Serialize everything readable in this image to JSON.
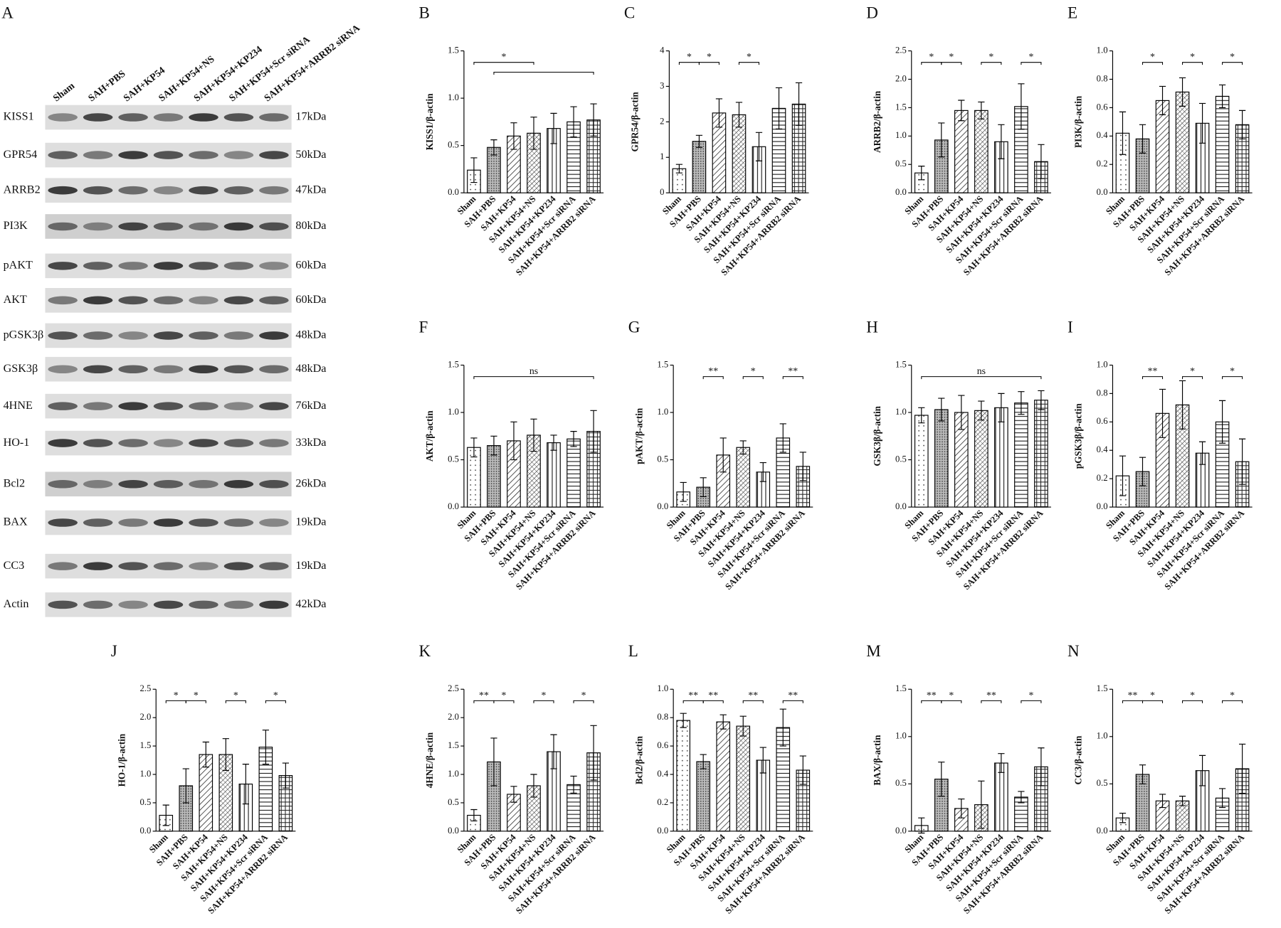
{
  "blot": {
    "panel": "A",
    "lanes": [
      "Sham",
      "SAH+PBS",
      "SAH+KP54",
      "SAH+KP54+NS",
      "SAH+KP54+KP234",
      "SAH+KP54+Scr siRNA",
      "SAH+KP54+ARRB2 siRNA"
    ],
    "rows": [
      {
        "protein": "KISS1",
        "size": "17kDa"
      },
      {
        "protein": "GPR54",
        "size": "50kDa"
      },
      {
        "protein": "ARRB2",
        "size": "47kDa"
      },
      {
        "protein": "PI3K",
        "size": "80kDa"
      },
      {
        "protein": "pAKT",
        "size": "60kDa"
      },
      {
        "protein": "AKT",
        "size": "60kDa"
      },
      {
        "protein": "pGSK3β",
        "size": "48kDa"
      },
      {
        "protein": "GSK3β",
        "size": "48kDa"
      },
      {
        "protein": "4HNE",
        "size": "76kDa"
      },
      {
        "protein": "HO-1",
        "size": "33kDa"
      },
      {
        "protein": "Bcl2",
        "size": "26kDa"
      },
      {
        "protein": "BAX",
        "size": "19kDa"
      },
      {
        "protein": "CC3",
        "size": "19kDa"
      },
      {
        "protein": "Actin",
        "size": "42kDa"
      }
    ]
  },
  "chart_data": [
    {
      "type": "bar",
      "panel": "B",
      "ylabel": "KISS1/β-actin",
      "categories": [
        "Sham",
        "SAH+PBS",
        "SAH+KP54",
        "SAH+KP54+NS",
        "SAH+KP54+KP234",
        "SAH+KP54+Scr siRNA",
        "SAH+KP54+ARRB2 siRNA"
      ],
      "values": [
        0.24,
        0.48,
        0.6,
        0.63,
        0.68,
        0.75,
        0.77
      ],
      "errors": [
        0.13,
        0.08,
        0.14,
        0.17,
        0.16,
        0.16,
        0.17
      ],
      "ylim": [
        0,
        1.5
      ],
      "yticks": [
        {
          "value": 0,
          "label": "0.0"
        },
        0.5,
        {
          "value": 1,
          "label": "1.0"
        },
        1.5
      ],
      "annotations": [
        {
          "label": "*",
          "between": [
            "Sham",
            "SAH+KP54+NS"
          ]
        },
        {
          "between": [
            "SAH+PBS",
            "SAH+KP54+ARRB2 siRNA"
          ]
        }
      ]
    },
    {
      "type": "bar",
      "panel": "C",
      "ylabel": "GPR54/β-actin",
      "categories": [
        "Sham",
        "SAH+PBS",
        "SAH+KP54",
        "SAH+KP54+NS",
        "SAH+KP54+KP234",
        "SAH+KP54+Scr siRNA",
        "SAH+KP54+ARRB2 siRNA"
      ],
      "values": [
        0.68,
        1.45,
        2.25,
        2.2,
        1.3,
        2.38,
        2.5
      ],
      "errors": [
        0.12,
        0.17,
        0.4,
        0.35,
        0.4,
        0.58,
        0.6
      ],
      "ylim": [
        0,
        4
      ],
      "yticks": [
        0,
        1,
        2,
        3,
        4
      ],
      "annotations": [
        {
          "label": "*",
          "between": [
            "Sham",
            "SAH+PBS"
          ]
        },
        {
          "label": "*",
          "between": [
            "SAH+PBS",
            "SAH+KP54"
          ]
        },
        {
          "label": "*",
          "between": [
            "SAH+KP54+NS",
            "SAH+KP54+KP234"
          ]
        }
      ]
    },
    {
      "type": "bar",
      "panel": "D",
      "ylabel": "ARRB2/β-actin",
      "categories": [
        "Sham",
        "SAH+PBS",
        "SAH+KP54",
        "SAH+KP54+NS",
        "SAH+KP54+KP234",
        "SAH+KP54+Scr siRNA",
        "SAH+KP54+ARRB2 siRNA"
      ],
      "values": [
        0.35,
        0.93,
        1.45,
        1.45,
        0.9,
        1.52,
        0.55
      ],
      "errors": [
        0.12,
        0.3,
        0.18,
        0.15,
        0.3,
        0.4,
        0.3
      ],
      "ylim": [
        0,
        2.5
      ],
      "yticks": [
        {
          "value": 0,
          "label": "0.0"
        },
        0.5,
        {
          "value": 1,
          "label": "1.0"
        },
        1.5,
        {
          "value": 2,
          "label": "2.0"
        },
        2.5
      ],
      "annotations": [
        {
          "label": "*",
          "between": [
            "Sham",
            "SAH+PBS"
          ]
        },
        {
          "label": "*",
          "between": [
            "SAH+PBS",
            "SAH+KP54"
          ]
        },
        {
          "label": "*",
          "between": [
            "SAH+KP54+NS",
            "SAH+KP54+KP234"
          ]
        },
        {
          "label": "*",
          "between": [
            "SAH+KP54+Scr siRNA",
            "SAH+KP54+ARRB2 siRNA"
          ]
        }
      ]
    },
    {
      "type": "bar",
      "panel": "E",
      "ylabel": "PI3K/β-actin",
      "categories": [
        "Sham",
        "SAH+PBS",
        "SAH+KP54",
        "SAH+KP54+NS",
        "SAH+KP54+KP234",
        "SAH+KP54+Scr siRNA",
        "SAH+KP54+ARRB2 siRNA"
      ],
      "values": [
        0.42,
        0.38,
        0.65,
        0.71,
        0.49,
        0.68,
        0.48
      ],
      "errors": [
        0.15,
        0.1,
        0.1,
        0.1,
        0.14,
        0.08,
        0.1
      ],
      "ylim": [
        0,
        1
      ],
      "yticks": [
        {
          "value": 0,
          "label": "0.0"
        },
        0.2,
        0.4,
        0.6,
        0.8,
        {
          "value": 1,
          "label": "1.0"
        }
      ],
      "annotations": [
        {
          "label": "*",
          "between": [
            "SAH+PBS",
            "SAH+KP54"
          ]
        },
        {
          "label": "*",
          "between": [
            "SAH+KP54+NS",
            "SAH+KP54+KP234"
          ]
        },
        {
          "label": "*",
          "between": [
            "SAH+KP54+Scr siRNA",
            "SAH+KP54+ARRB2 siRNA"
          ]
        }
      ]
    },
    {
      "type": "bar",
      "panel": "F",
      "ylabel": "AKT/β-actin",
      "categories": [
        "Sham",
        "SAH+PBS",
        "SAH+KP54",
        "SAH+KP54+NS",
        "SAH+KP54+KP234",
        "SAH+KP54+Scr siRNA",
        "SAH+KP54+ARRB2 siRNA"
      ],
      "values": [
        0.63,
        0.65,
        0.7,
        0.76,
        0.68,
        0.72,
        0.8
      ],
      "errors": [
        0.1,
        0.1,
        0.2,
        0.17,
        0.08,
        0.08,
        0.22
      ],
      "ylim": [
        0,
        1.5
      ],
      "yticks": [
        {
          "value": 0,
          "label": "0.0"
        },
        0.5,
        {
          "value": 1,
          "label": "1.0"
        },
        1.5
      ],
      "annotations": [
        {
          "label": "ns",
          "between": [
            "Sham",
            "SAH+KP54+ARRB2 siRNA"
          ]
        }
      ]
    },
    {
      "type": "bar",
      "panel": "G",
      "ylabel": "pAKT/β-actin",
      "categories": [
        "Sham",
        "SAH+PBS",
        "SAH+KP54",
        "SAH+KP54+NS",
        "SAH+KP54+KP234",
        "SAH+KP54+Scr siRNA",
        "SAH+KP54+ARRB2 siRNA"
      ],
      "values": [
        0.16,
        0.21,
        0.55,
        0.63,
        0.37,
        0.73,
        0.43
      ],
      "errors": [
        0.1,
        0.1,
        0.18,
        0.07,
        0.1,
        0.15,
        0.15
      ],
      "ylim": [
        0,
        1.5
      ],
      "yticks": [
        {
          "value": 0,
          "label": "0.0"
        },
        0.5,
        {
          "value": 1,
          "label": "1.0"
        },
        1.5
      ],
      "annotations": [
        {
          "label": "**",
          "between": [
            "SAH+PBS",
            "SAH+KP54"
          ]
        },
        {
          "label": "*",
          "between": [
            "SAH+KP54+NS",
            "SAH+KP54+KP234"
          ]
        },
        {
          "label": "**",
          "between": [
            "SAH+KP54+Scr siRNA",
            "SAH+KP54+ARRB2 siRNA"
          ]
        }
      ]
    },
    {
      "type": "bar",
      "panel": "H",
      "ylabel": "GSK3β/β-actin",
      "categories": [
        "Sham",
        "SAH+PBS",
        "SAH+KP54",
        "SAH+KP54+NS",
        "SAH+KP54+KP234",
        "SAH+KP54+Scr siRNA",
        "SAH+KP54+ARRB2 siRNA"
      ],
      "values": [
        0.97,
        1.03,
        1.0,
        1.02,
        1.05,
        1.1,
        1.13
      ],
      "errors": [
        0.08,
        0.12,
        0.18,
        0.1,
        0.15,
        0.12,
        0.1
      ],
      "ylim": [
        0,
        1.5
      ],
      "yticks": [
        {
          "value": 0,
          "label": "0.0"
        },
        0.5,
        {
          "value": 1,
          "label": "1.0"
        },
        1.5
      ],
      "annotations": [
        {
          "label": "ns",
          "between": [
            "Sham",
            "SAH+KP54+ARRB2 siRNA"
          ]
        }
      ]
    },
    {
      "type": "bar",
      "panel": "I",
      "ylabel": "pGSK3β/β-actin",
      "categories": [
        "Sham",
        "SAH+PBS",
        "SAH+KP54",
        "SAH+KP54+NS",
        "SAH+KP54+KP234",
        "SAH+KP54+Scr siRNA",
        "SAH+KP54+ARRB2 siRNA"
      ],
      "values": [
        0.22,
        0.25,
        0.66,
        0.72,
        0.38,
        0.6,
        0.32
      ],
      "errors": [
        0.14,
        0.1,
        0.17,
        0.17,
        0.08,
        0.15,
        0.16
      ],
      "ylim": [
        0,
        1
      ],
      "yticks": [
        {
          "value": 0,
          "label": "0.0"
        },
        0.2,
        0.4,
        0.6,
        0.8,
        {
          "value": 1,
          "label": "1.0"
        }
      ],
      "annotations": [
        {
          "label": "**",
          "between": [
            "SAH+PBS",
            "SAH+KP54"
          ]
        },
        {
          "label": "*",
          "between": [
            "SAH+KP54+NS",
            "SAH+KP54+KP234"
          ]
        },
        {
          "label": "*",
          "between": [
            "SAH+KP54+Scr siRNA",
            "SAH+KP54+ARRB2 siRNA"
          ]
        }
      ]
    },
    {
      "type": "bar",
      "panel": "J",
      "ylabel": "HO-1/β-actin",
      "categories": [
        "Sham",
        "SAH+PBS",
        "SAH+KP54",
        "SAH+KP54+NS",
        "SAH+KP54+KP234",
        "SAH+KP54+Scr siRNA",
        "SAH+KP54+ARRB2 siRNA"
      ],
      "values": [
        0.28,
        0.8,
        1.35,
        1.35,
        0.83,
        1.48,
        0.98
      ],
      "errors": [
        0.18,
        0.3,
        0.22,
        0.28,
        0.35,
        0.3,
        0.22
      ],
      "ylim": [
        0,
        2.5
      ],
      "yticks": [
        {
          "value": 0,
          "label": "0.0"
        },
        0.5,
        {
          "value": 1,
          "label": "1.0"
        },
        1.5,
        {
          "value": 2,
          "label": "2.0"
        },
        2.5
      ],
      "annotations": [
        {
          "label": "*",
          "between": [
            "Sham",
            "SAH+PBS"
          ]
        },
        {
          "label": "*",
          "between": [
            "SAH+PBS",
            "SAH+KP54"
          ]
        },
        {
          "label": "*",
          "between": [
            "SAH+KP54+NS",
            "SAH+KP54+KP234"
          ]
        },
        {
          "label": "*",
          "between": [
            "SAH+KP54+Scr siRNA",
            "SAH+KP54+ARRB2 siRNA"
          ]
        }
      ]
    },
    {
      "type": "bar",
      "panel": "K",
      "ylabel": "4HNE/β-actin",
      "categories": [
        "Sham",
        "SAH+PBS",
        "SAH+KP54",
        "SAH+KP54+NS",
        "SAH+KP54+KP234",
        "SAH+KP54+Scr siRNA",
        "SAH+KP54+ARRB2 siRNA"
      ],
      "values": [
        0.28,
        1.22,
        0.65,
        0.8,
        1.4,
        0.82,
        1.38
      ],
      "errors": [
        0.1,
        0.42,
        0.14,
        0.2,
        0.3,
        0.15,
        0.48
      ],
      "ylim": [
        0,
        2.5
      ],
      "yticks": [
        {
          "value": 0,
          "label": "0.0"
        },
        0.5,
        {
          "value": 1,
          "label": "1.0"
        },
        1.5,
        {
          "value": 2,
          "label": "2.0"
        },
        2.5
      ],
      "annotations": [
        {
          "label": "**",
          "between": [
            "Sham",
            "SAH+PBS"
          ]
        },
        {
          "label": "*",
          "between": [
            "SAH+PBS",
            "SAH+KP54"
          ]
        },
        {
          "label": "*",
          "between": [
            "SAH+KP54+NS",
            "SAH+KP54+KP234"
          ]
        },
        {
          "label": "*",
          "between": [
            "SAH+KP54+Scr siRNA",
            "SAH+KP54+ARRB2 siRNA"
          ]
        }
      ]
    },
    {
      "type": "bar",
      "panel": "L",
      "ylabel": "Bcl2/β-actin",
      "categories": [
        "Sham",
        "SAH+PBS",
        "SAH+KP54",
        "SAH+KP54+NS",
        "SAH+KP54+KP234",
        "SAH+KP54+Scr siRNA",
        "SAH+KP54+ARRB2 siRNA"
      ],
      "values": [
        0.78,
        0.49,
        0.77,
        0.74,
        0.5,
        0.73,
        0.43
      ],
      "errors": [
        0.05,
        0.05,
        0.05,
        0.07,
        0.09,
        0.13,
        0.1
      ],
      "ylim": [
        0,
        1
      ],
      "yticks": [
        {
          "value": 0,
          "label": "0.0"
        },
        0.2,
        0.4,
        0.6,
        0.8,
        {
          "value": 1,
          "label": "1.0"
        }
      ],
      "annotations": [
        {
          "label": "**",
          "between": [
            "Sham",
            "SAH+PBS"
          ]
        },
        {
          "label": "**",
          "between": [
            "SAH+PBS",
            "SAH+KP54"
          ]
        },
        {
          "label": "**",
          "between": [
            "SAH+KP54+NS",
            "SAH+KP54+KP234"
          ]
        },
        {
          "label": "**",
          "between": [
            "SAH+KP54+Scr siRNA",
            "SAH+KP54+ARRB2 siRNA"
          ]
        }
      ]
    },
    {
      "type": "bar",
      "panel": "M",
      "ylabel": "BAX/β-actin",
      "categories": [
        "Sham",
        "SAH+PBS",
        "SAH+KP54",
        "SAH+KP54+NS",
        "SAH+KP54+KP234",
        "SAH+KP54+Scr siRNA",
        "SAH+KP54+ARRB2 siRNA"
      ],
      "values": [
        0.06,
        0.55,
        0.24,
        0.28,
        0.72,
        0.36,
        0.68
      ],
      "errors": [
        0.08,
        0.18,
        0.1,
        0.25,
        0.1,
        0.06,
        0.2
      ],
      "ylim": [
        0,
        1.5
      ],
      "yticks": [
        {
          "value": 0,
          "label": "0.0"
        },
        0.5,
        {
          "value": 1,
          "label": "1.0"
        },
        1.5
      ],
      "annotations": [
        {
          "label": "**",
          "between": [
            "Sham",
            "SAH+PBS"
          ]
        },
        {
          "label": "*",
          "between": [
            "SAH+PBS",
            "SAH+KP54"
          ]
        },
        {
          "label": "**",
          "between": [
            "SAH+KP54+NS",
            "SAH+KP54+KP234"
          ]
        },
        {
          "label": "*",
          "between": [
            "SAH+KP54+Scr siRNA",
            "SAH+KP54+ARRB2 siRNA"
          ]
        }
      ]
    },
    {
      "type": "bar",
      "panel": "N",
      "ylabel": "CC3/β-actin",
      "categories": [
        "Sham",
        "SAH+PBS",
        "SAH+KP54",
        "SAH+KP54+NS",
        "SAH+KP54+KP234",
        "SAH+KP54+Scr siRNA",
        "SAH+KP54+ARRB2 siRNA"
      ],
      "values": [
        0.14,
        0.6,
        0.32,
        0.32,
        0.64,
        0.35,
        0.66
      ],
      "errors": [
        0.05,
        0.1,
        0.07,
        0.05,
        0.16,
        0.1,
        0.26
      ],
      "ylim": [
        0,
        1.5
      ],
      "yticks": [
        {
          "value": 0,
          "label": "0.0"
        },
        0.5,
        {
          "value": 1,
          "label": "1.0"
        },
        1.5
      ],
      "annotations": [
        {
          "label": "**",
          "between": [
            "Sham",
            "SAH+PBS"
          ]
        },
        {
          "label": "*",
          "between": [
            "SAH+PBS",
            "SAH+KP54"
          ]
        },
        {
          "label": "*",
          "between": [
            "SAH+KP54+NS",
            "SAH+KP54+KP234"
          ]
        },
        {
          "label": "*",
          "between": [
            "SAH+KP54+Scr siRNA",
            "SAH+KP54+ARRB2 siRNA"
          ]
        }
      ]
    }
  ]
}
